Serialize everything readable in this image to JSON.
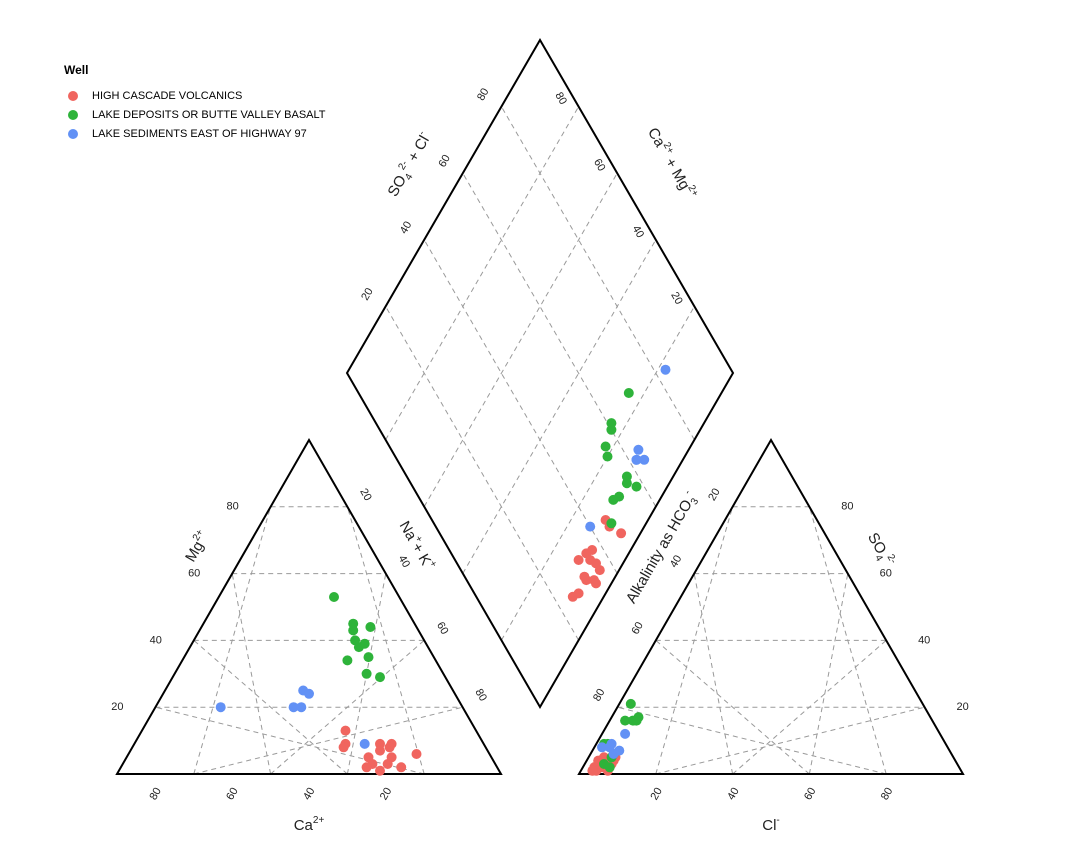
{
  "chart_data": {
    "type": "scatter",
    "title": "",
    "legend_position": "top-left",
    "legend": {
      "title": "Well",
      "entries": [
        {
          "name": "HIGH CASCADE VOLCANICS",
          "color": "#F0655F"
        },
        {
          "name": "LAKE DEPOSITS OR BUTTE VALLEY BASALT",
          "color": "#2EB33A"
        },
        {
          "name": "LAKE SEDIMENTS EAST OF HIGHWAY 97",
          "color": "#6291F5"
        }
      ]
    },
    "panels": {
      "cation": {
        "labels": {
          "left": "Mg",
          "left_sup": "2+",
          "right": "Na",
          "right_sup": "+",
          "right2": "+ K",
          "right2_sup": "+",
          "bottom": "Ca",
          "bottom_sup": "2+"
        },
        "left_ticks": [
          "20",
          "40",
          "60",
          "80"
        ],
        "right_ticks": [
          "20",
          "40",
          "60",
          "80"
        ],
        "bottom_ticks": [
          "80",
          "60",
          "40",
          "20"
        ]
      },
      "anion": {
        "labels": {
          "left": "Alkalinity as HCO",
          "left_sub": "3",
          "left_sup": "-",
          "right": "SO",
          "right_sub": "4",
          "right_sup": "2-",
          "bottom": "Cl",
          "bottom_sup": "-"
        },
        "left_ticks": [
          "20",
          "40",
          "60",
          "80"
        ],
        "right_ticks": [
          "20",
          "40",
          "60",
          "80"
        ],
        "bottom_ticks": [
          "20",
          "40",
          "60",
          "80"
        ]
      },
      "diamond": {
        "labels": {
          "left": "SO",
          "left_sub": "4",
          "left_sup": "2-",
          "left2": " + Cl",
          "left2_sup": "-",
          "right": "Ca",
          "right_sup": "2+",
          "right2": " + Mg",
          "right2_sup": "2+"
        },
        "left_ticks": [
          "20",
          "40",
          "60",
          "80"
        ],
        "right_ticks": [
          "20",
          "40",
          "60",
          "80"
        ]
      }
    },
    "series": [
      {
        "name": "HIGH CASCADE VOLCANICS",
        "color": "#F0655F",
        "cation": [
          {
            "ca": 34,
            "mg": 13,
            "nak": 53
          },
          {
            "ca": 24,
            "mg": 9,
            "nak": 67
          },
          {
            "ca": 27,
            "mg": 9,
            "nak": 64
          },
          {
            "ca": 25,
            "mg": 8,
            "nak": 67
          },
          {
            "ca": 26,
            "mg": 5,
            "nak": 69
          },
          {
            "ca": 19,
            "mg": 6,
            "nak": 75
          },
          {
            "ca": 32,
            "mg": 5,
            "nak": 63
          },
          {
            "ca": 32,
            "mg": 3,
            "nak": 65
          },
          {
            "ca": 28,
            "mg": 3,
            "nak": 69
          },
          {
            "ca": 25,
            "mg": 2,
            "nak": 73
          },
          {
            "ca": 36,
            "mg": 9,
            "nak": 55
          },
          {
            "ca": 37,
            "mg": 8,
            "nak": 55
          },
          {
            "ca": 28,
            "mg": 7,
            "nak": 65
          },
          {
            "ca": 31,
            "mg": 1,
            "nak": 68
          },
          {
            "ca": 34,
            "mg": 2,
            "nak": 64
          }
        ],
        "anion": [
          {
            "hco3": 95,
            "so4": 2,
            "cl": 3
          },
          {
            "hco3": 95,
            "so4": 1,
            "cl": 4
          },
          {
            "hco3": 95,
            "so4": 2,
            "cl": 3
          },
          {
            "hco3": 96,
            "so4": 1,
            "cl": 3
          },
          {
            "hco3": 93,
            "so4": 2,
            "cl": 5
          },
          {
            "hco3": 92,
            "so4": 1,
            "cl": 7
          },
          {
            "hco3": 90,
            "so4": 3,
            "cl": 7
          },
          {
            "hco3": 89,
            "so4": 5,
            "cl": 6
          },
          {
            "hco3": 92,
            "so4": 4,
            "cl": 4
          },
          {
            "hco3": 93,
            "so4": 3,
            "cl": 4
          },
          {
            "hco3": 89,
            "so4": 4,
            "cl": 7
          },
          {
            "hco3": 91,
            "so4": 2,
            "cl": 7
          },
          {
            "hco3": 91,
            "so4": 5,
            "cl": 4
          },
          {
            "hco3": 88,
            "so4": 5,
            "cl": 7
          },
          {
            "hco3": 93,
            "so4": 4,
            "cl": 3
          }
        ]
      },
      {
        "name": "LAKE DEPOSITS OR BUTTE VALLEY BASALT",
        "color": "#2EB33A",
        "cation": [
          {
            "ca": 17,
            "mg": 53,
            "nak": 30
          },
          {
            "ca": 16,
            "mg": 45,
            "nak": 39
          },
          {
            "ca": 17,
            "mg": 43,
            "nak": 40
          },
          {
            "ca": 16,
            "mg": 39,
            "nak": 45
          },
          {
            "ca": 18,
            "mg": 38,
            "nak": 44
          },
          {
            "ca": 17,
            "mg": 35,
            "nak": 48
          },
          {
            "ca": 23,
            "mg": 34,
            "nak": 43
          },
          {
            "ca": 20,
            "mg": 30,
            "nak": 50
          },
          {
            "ca": 12,
            "mg": 44,
            "nak": 44
          },
          {
            "ca": 18,
            "mg": 40,
            "nak": 42
          },
          {
            "ca": 17,
            "mg": 29,
            "nak": 54
          }
        ],
        "anion": [
          {
            "hco3": 76,
            "so4": 21,
            "cl": 3
          },
          {
            "hco3": 76,
            "so4": 17,
            "cl": 7
          },
          {
            "hco3": 77,
            "so4": 16,
            "cl": 7
          },
          {
            "hco3": 80,
            "so4": 16,
            "cl": 4
          },
          {
            "hco3": 78,
            "so4": 16,
            "cl": 6
          },
          {
            "hco3": 89,
            "so4": 9,
            "cl": 2
          },
          {
            "hco3": 88,
            "so4": 9,
            "cl": 3
          },
          {
            "hco3": 88,
            "so4": 6,
            "cl": 6
          },
          {
            "hco3": 89,
            "so4": 5,
            "cl": 6
          },
          {
            "hco3": 92,
            "so4": 3,
            "cl": 5
          },
          {
            "hco3": 91,
            "so4": 2,
            "cl": 7
          }
        ]
      },
      {
        "name": "LAKE SEDIMENTS EAST OF HIGHWAY 97",
        "color": "#6291F5",
        "cation": [
          {
            "ca": 39,
            "mg": 25,
            "nak": 36
          },
          {
            "ca": 38,
            "mg": 24,
            "nak": 38
          },
          {
            "ca": 44,
            "mg": 20,
            "nak": 36
          },
          {
            "ca": 42,
            "mg": 20,
            "nak": 38
          },
          {
            "ca": 31,
            "mg": 9,
            "nak": 60
          },
          {
            "ca": 63,
            "mg": 20,
            "nak": 17
          }
        ],
        "anion": [
          {
            "hco3": 90,
            "so4": 8,
            "cl": 2
          },
          {
            "hco3": 88,
            "so4": 8,
            "cl": 4
          },
          {
            "hco3": 87,
            "so4": 9,
            "cl": 4
          },
          {
            "hco3": 88,
            "so4": 6,
            "cl": 6
          },
          {
            "hco3": 86,
            "so4": 7,
            "cl": 7
          },
          {
            "hco3": 82,
            "so4": 12,
            "cl": 6
          }
        ]
      }
    ]
  }
}
